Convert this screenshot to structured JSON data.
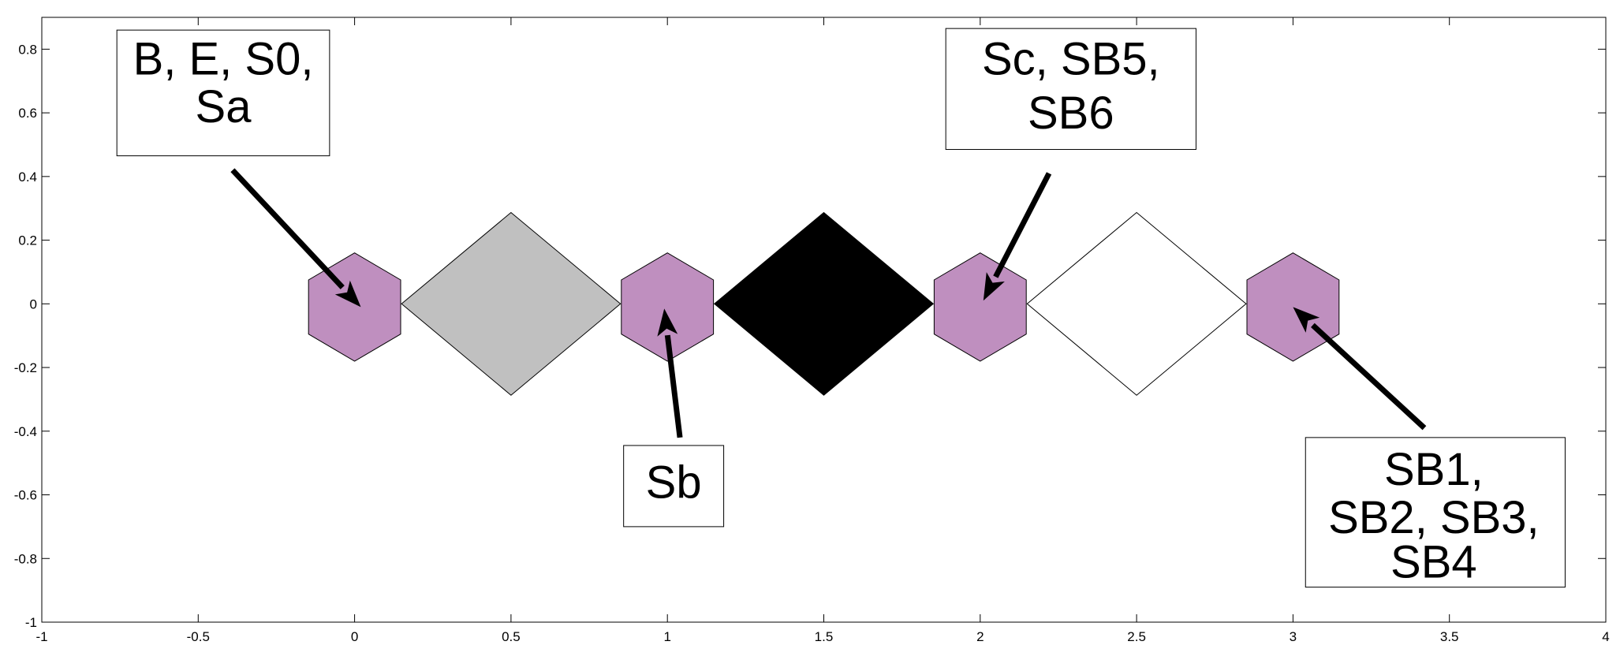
{
  "chart_data": {
    "type": "diagram",
    "xlim": [
      -1,
      4
    ],
    "ylim": [
      -1,
      0.9
    ],
    "xticks": [
      -1,
      -0.5,
      0,
      0.5,
      1,
      1.5,
      2,
      2.5,
      3,
      3.5,
      4
    ],
    "xtick_labels": [
      "-1",
      "-0.5",
      "0",
      "0.5",
      "1",
      "1.5",
      "2",
      "2.5",
      "3",
      "3.5",
      "4"
    ],
    "yticks": [
      -1,
      -0.8,
      -0.6,
      -0.4,
      -0.2,
      0,
      0.2,
      0.4,
      0.6,
      0.8
    ],
    "ytick_labels": [
      "-1",
      "-0.8",
      "-0.6",
      "-0.4",
      "-0.2",
      "0",
      "0.2",
      "0.4",
      "0.6",
      "0.8"
    ],
    "colors": {
      "purple": "#bf8fbf",
      "gray": "#c0c0c0",
      "black": "#000000",
      "white": "#ffffff",
      "stroke": "#000000"
    },
    "hexagons": [
      {
        "x": 0,
        "y": -0.01,
        "fill": "purple"
      },
      {
        "x": 1,
        "y": -0.01,
        "fill": "purple"
      },
      {
        "x": 2,
        "y": -0.01,
        "fill": "purple"
      },
      {
        "x": 3,
        "y": -0.01,
        "fill": "purple"
      }
    ],
    "hexagon_radius": 0.17,
    "diamonds": [
      {
        "x": 0.5,
        "y": 0,
        "fill": "gray"
      },
      {
        "x": 1.5,
        "y": 0,
        "fill": "black"
      },
      {
        "x": 2.5,
        "y": 0,
        "fill": "white"
      }
    ],
    "diamond_half_width": 0.35,
    "diamond_half_height": 0.287,
    "annotations": [
      {
        "lines": [
          "B, E, S0,",
          "Sa"
        ],
        "box": {
          "x0": -0.76,
          "x1": -0.08,
          "y0": 0.465,
          "y1": 0.86
        },
        "text_center_x": -0.42,
        "line_y": [
          0.77,
          0.62
        ],
        "arrow": {
          "from": [
            -0.39,
            0.42
          ],
          "to": [
            0.02,
            -0.01
          ]
        }
      },
      {
        "lines": [
          "Sb"
        ],
        "box": {
          "x0": 0.86,
          "x1": 1.18,
          "y0": -0.7,
          "y1": -0.445
        },
        "text_center_x": 1.02,
        "line_y": [
          -0.56
        ],
        "arrow": {
          "from": [
            1.04,
            -0.42
          ],
          "to": [
            0.99,
            -0.015
          ]
        }
      },
      {
        "lines": [
          "Sc, SB5,",
          "SB6"
        ],
        "box": {
          "x0": 1.89,
          "x1": 2.69,
          "y0": 0.485,
          "y1": 0.865
        },
        "text_center_x": 2.29,
        "line_y": [
          0.77,
          0.6
        ],
        "arrow": {
          "from": [
            2.22,
            0.41
          ],
          "to": [
            2.01,
            0.01
          ]
        }
      },
      {
        "lines": [
          "SB1,",
          "SB2, SB3,",
          "SB4"
        ],
        "box": {
          "x0": 3.04,
          "x1": 3.87,
          "y0": -0.89,
          "y1": -0.42
        },
        "text_center_x": 3.45,
        "line_y": [
          -0.52,
          -0.67,
          -0.81
        ],
        "arrow": {
          "from": [
            3.42,
            -0.39
          ],
          "to": [
            3.0,
            -0.01
          ]
        }
      }
    ]
  }
}
